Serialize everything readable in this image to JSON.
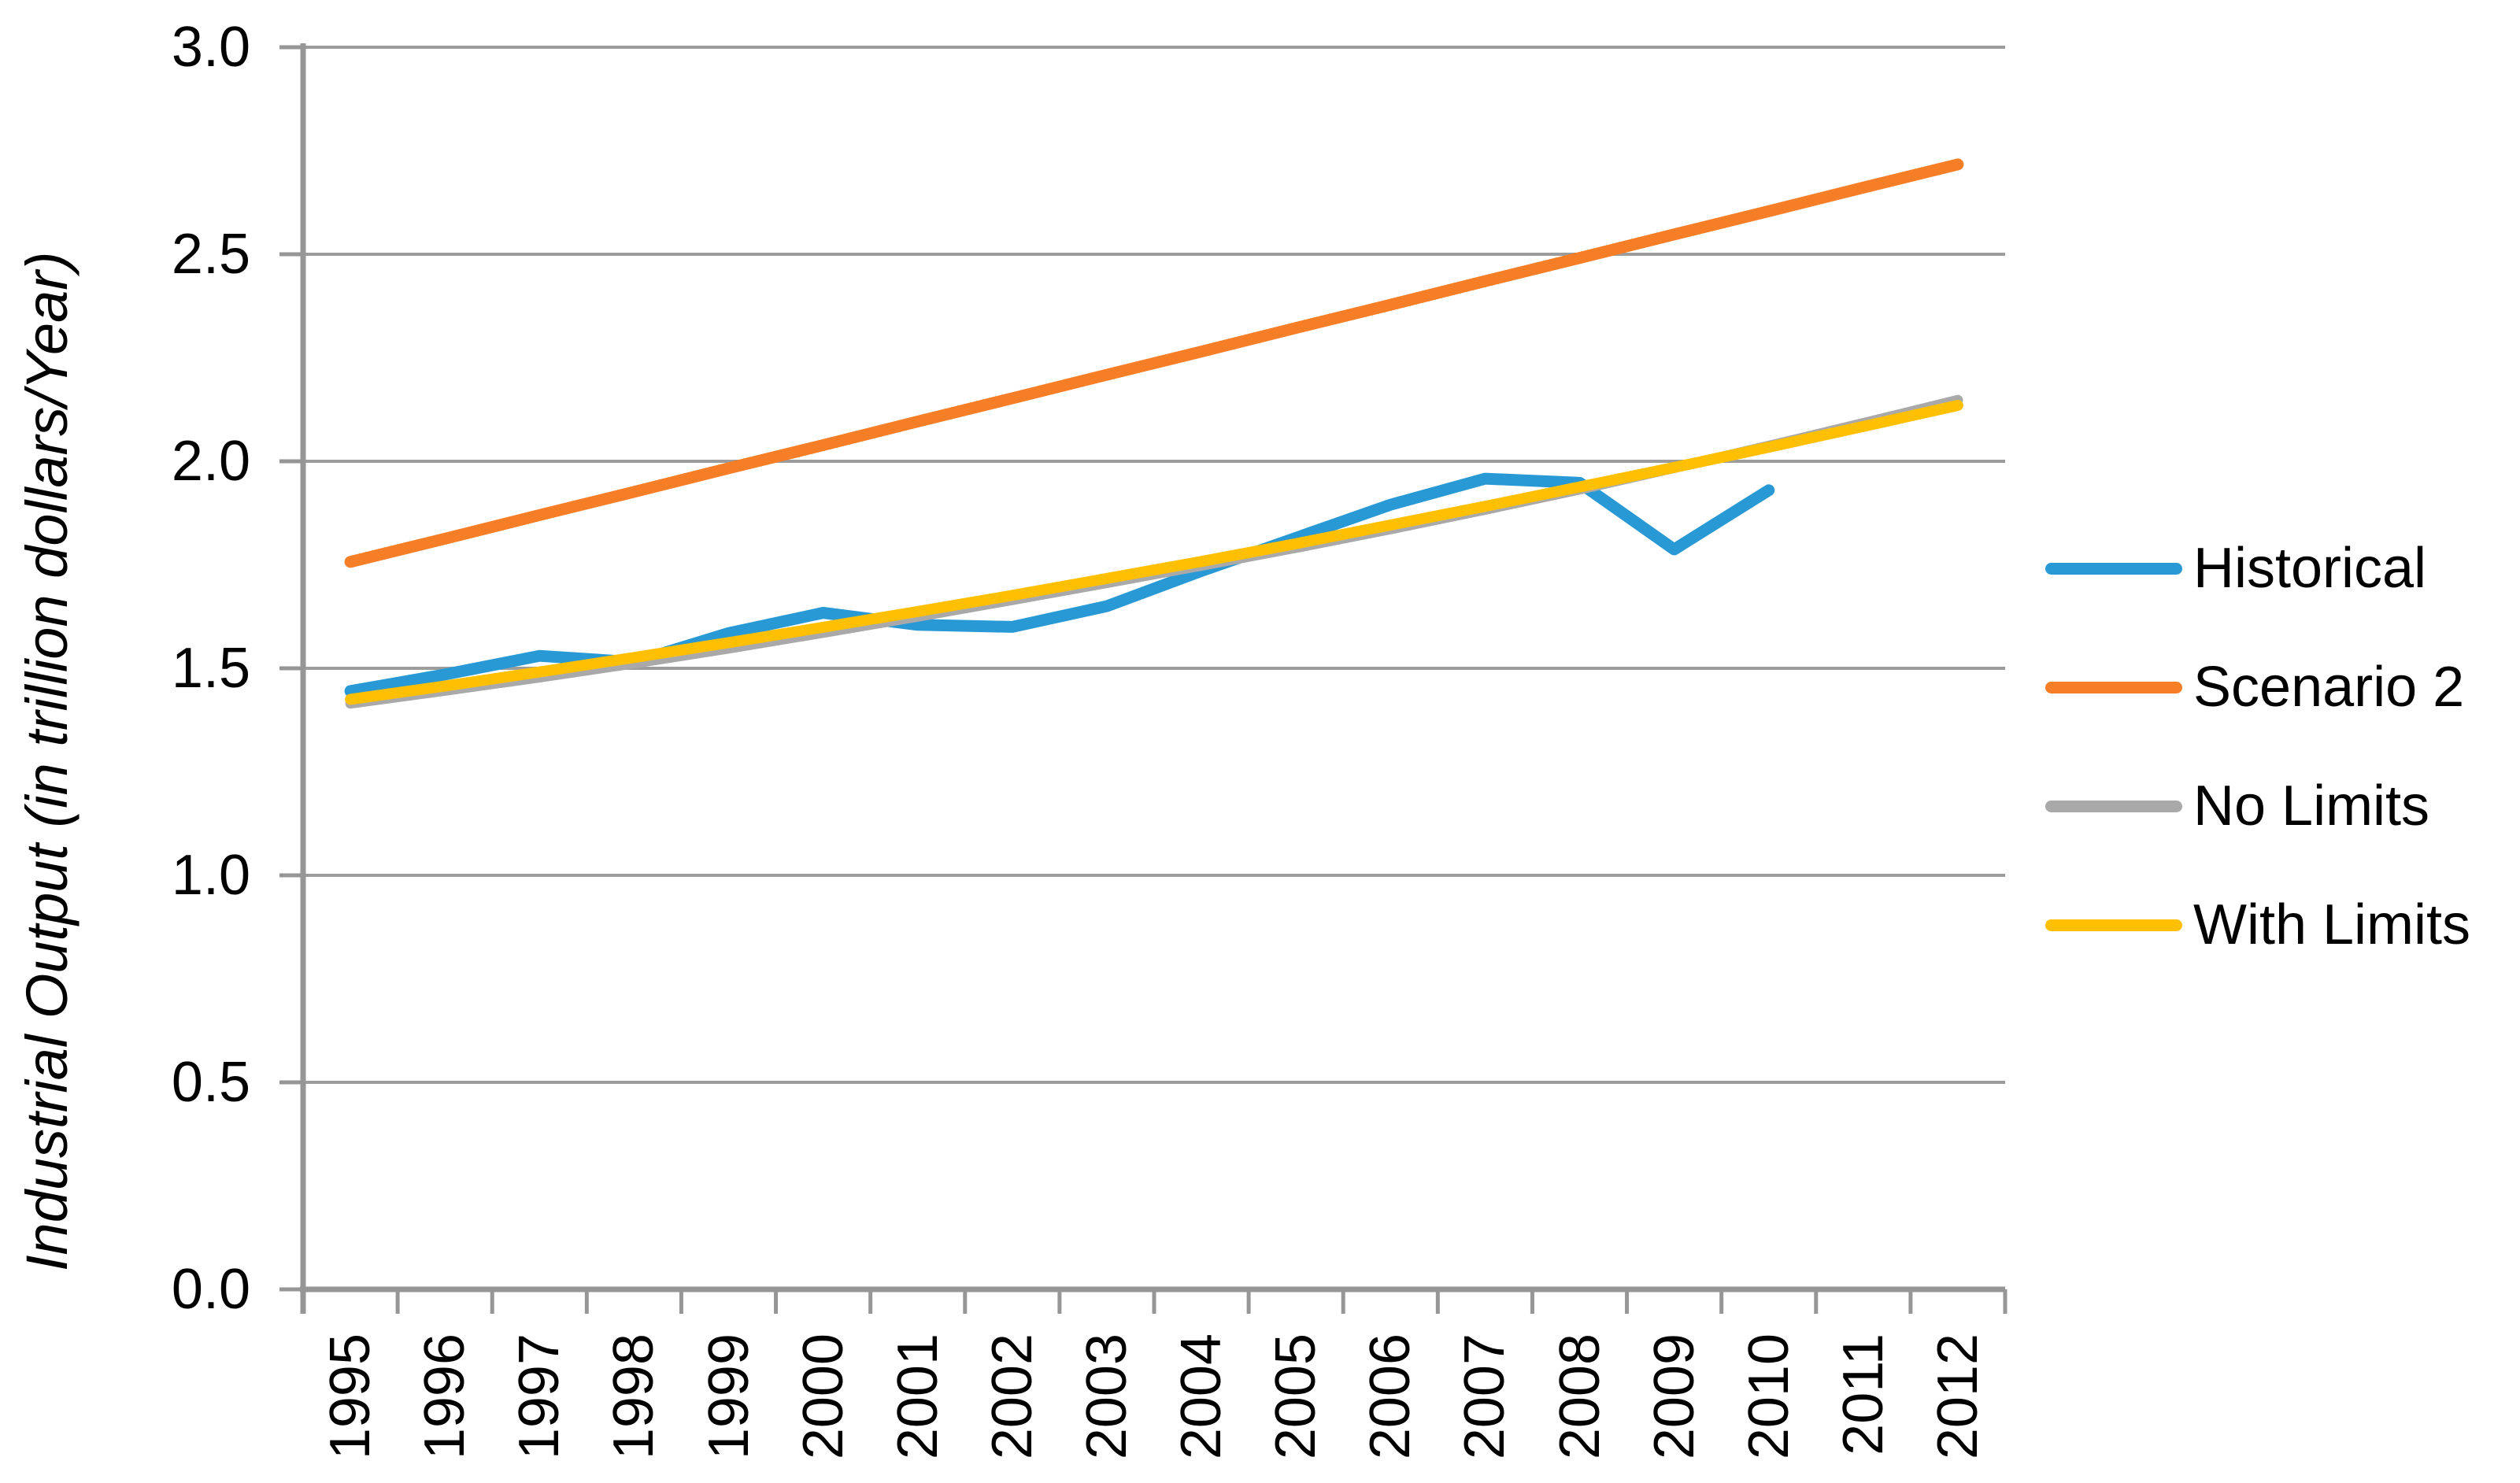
{
  "chart_data": {
    "type": "line",
    "title": "",
    "xlabel": "",
    "ylabel": "Industrial Output (in trillion dollars/Year)",
    "categories": [
      "1995",
      "1996",
      "1997",
      "1998",
      "1999",
      "2000",
      "2001",
      "2002",
      "2003",
      "2004",
      "2005",
      "2006",
      "2007",
      "2008",
      "2009",
      "2010",
      "2011",
      "2012"
    ],
    "y_tick_labels": [
      "0.0",
      "0.5",
      "1.0",
      "1.5",
      "2.0",
      "2.5",
      "3.0"
    ],
    "ylim": [
      0.0,
      3.0
    ],
    "grid": "horizontal",
    "legend_position": "right",
    "grid_color": "#9C9C9C",
    "axis_color": "#969696",
    "text_color": "#000000",
    "series": [
      {
        "name": "Historical",
        "color": "#2999D6",
        "values": [
          1.445,
          1.485,
          1.53,
          1.515,
          1.585,
          1.634,
          1.605,
          1.6,
          1.65,
          1.735,
          1.815,
          1.895,
          1.958,
          1.948,
          1.787,
          1.93
        ]
      },
      {
        "name": "Scenario 2",
        "color": "#F57E27",
        "values": [
          1.757,
          1.813,
          1.87,
          1.926,
          1.983,
          2.039,
          2.096,
          2.152,
          2.209,
          2.265,
          2.322,
          2.378,
          2.435,
          2.491,
          2.548,
          2.604,
          2.661,
          2.717
        ]
      },
      {
        "name": "No Limits",
        "color": "#A9A9A9",
        "values": [
          1.415,
          1.446,
          1.478,
          1.512,
          1.548,
          1.586,
          1.625,
          1.665,
          1.706,
          1.748,
          1.791,
          1.836,
          1.883,
          1.932,
          1.984,
          2.037,
          2.092,
          2.148
        ]
      },
      {
        "name": "With Limits",
        "color": "#FFC003",
        "values": [
          1.425,
          1.457,
          1.491,
          1.526,
          1.562,
          1.599,
          1.637,
          1.676,
          1.717,
          1.758,
          1.801,
          1.846,
          1.891,
          1.938,
          1.985,
          2.034,
          2.084,
          2.135
        ]
      }
    ]
  }
}
